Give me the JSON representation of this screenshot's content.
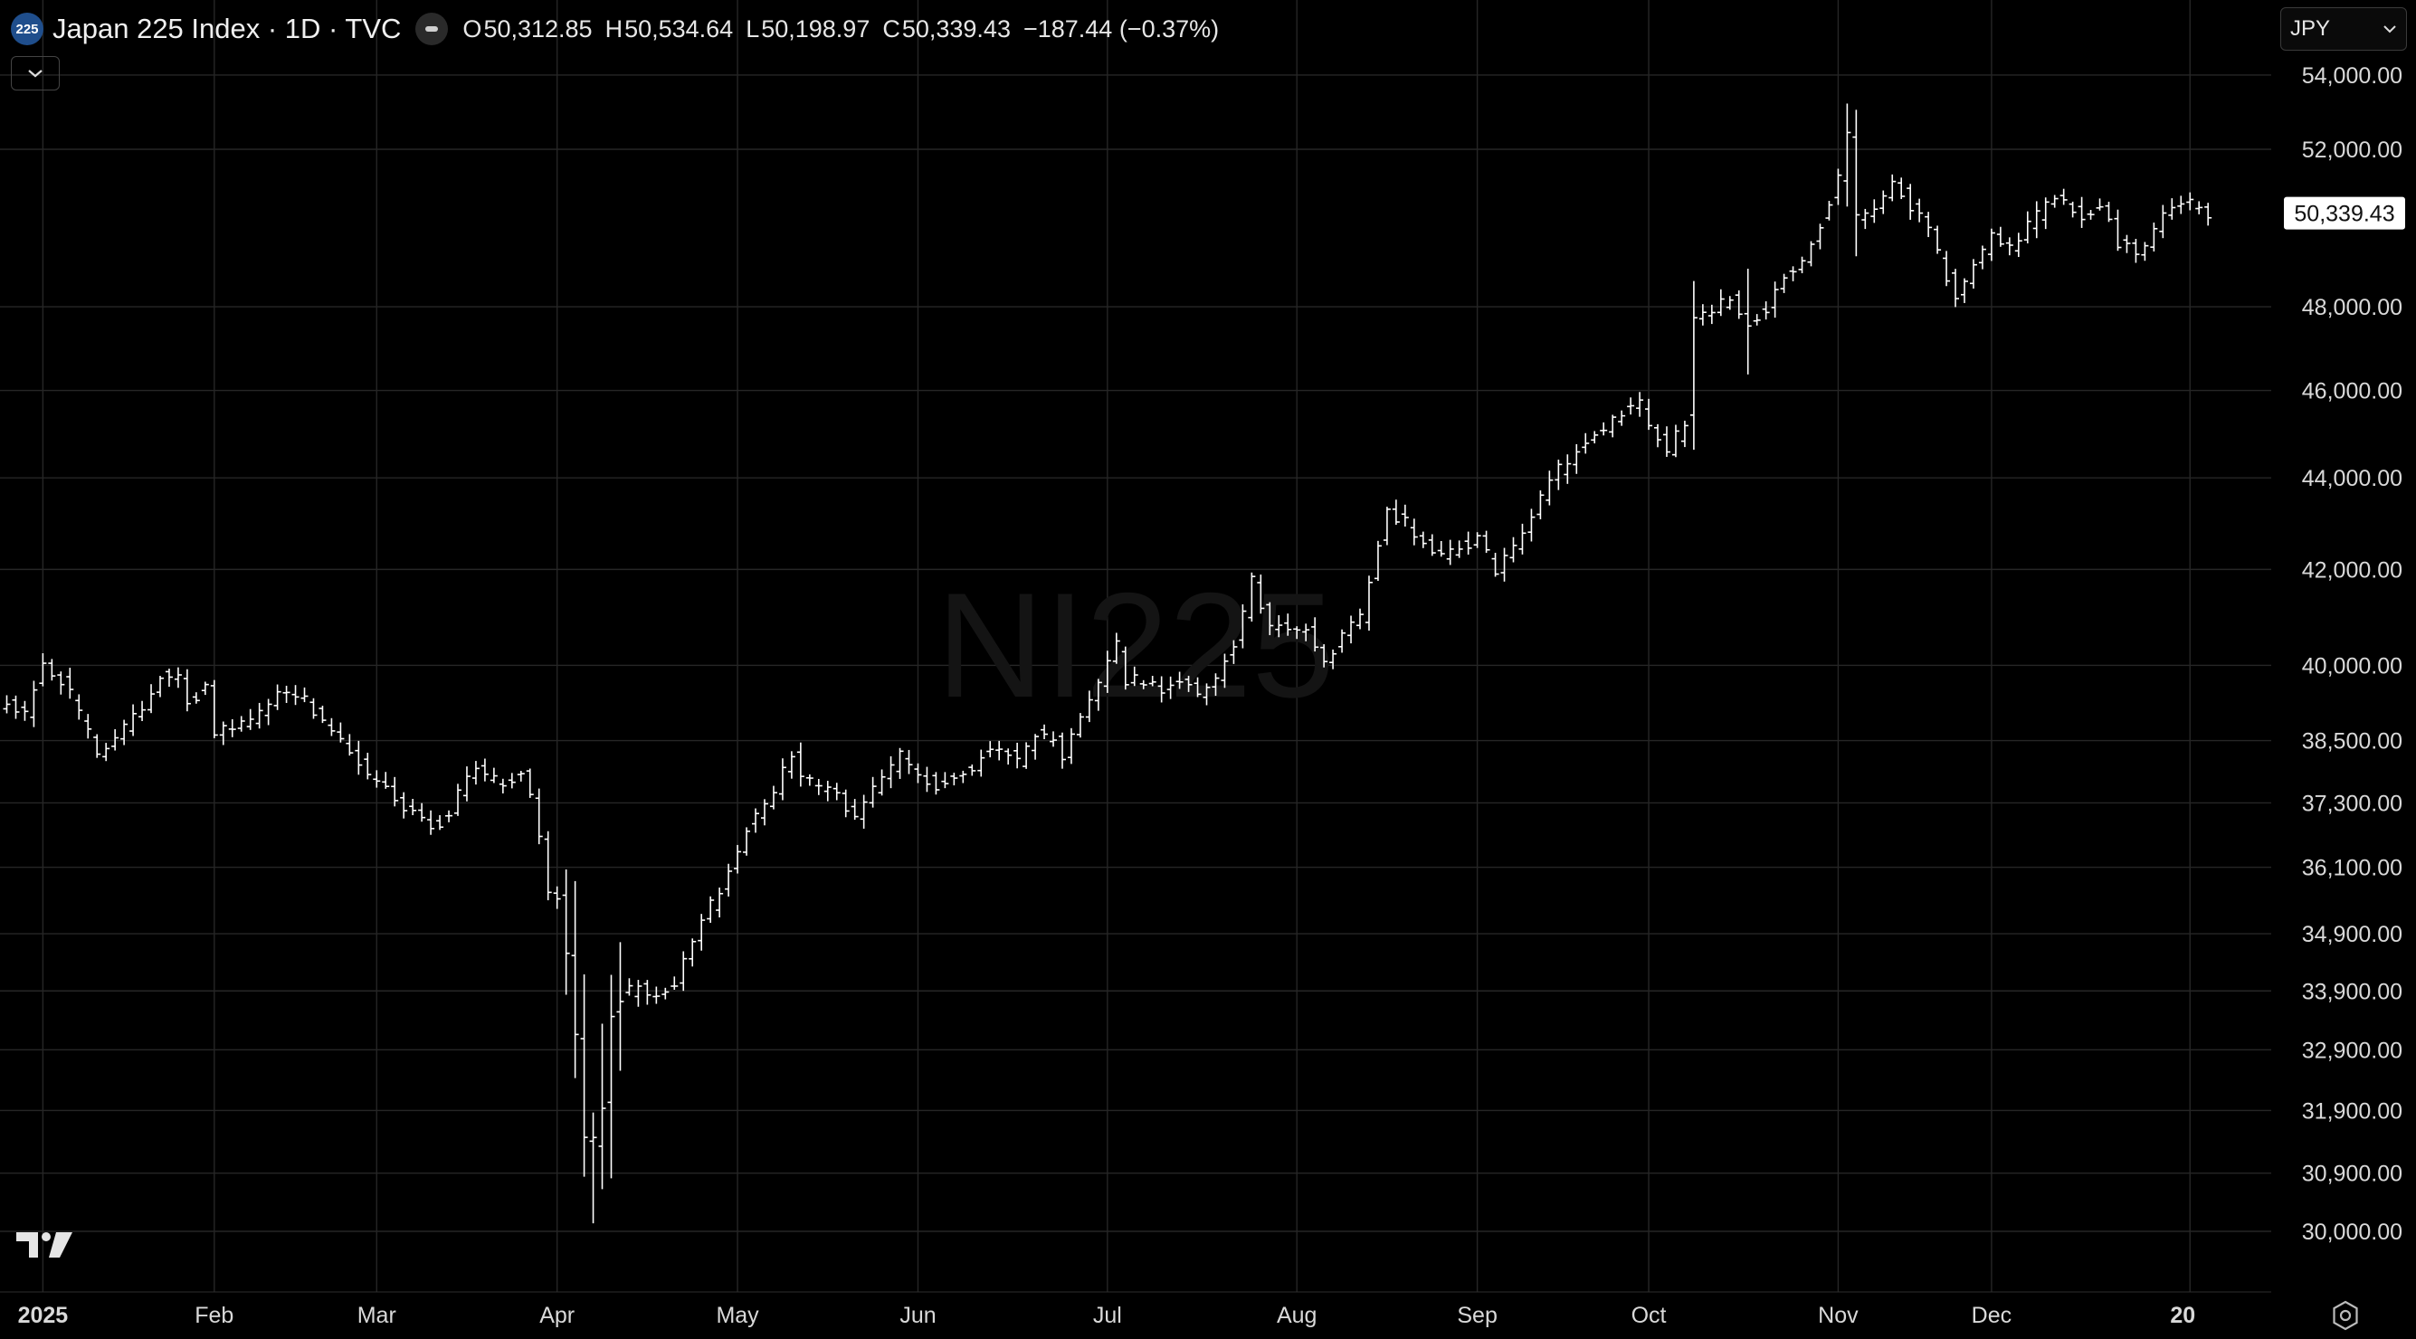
{
  "header": {
    "symbol_badge": "225",
    "title": "Japan 225 Index · 1D · TVC",
    "ohlc": {
      "o_label": "O",
      "o": "50,312.85",
      "h_label": "H",
      "h": "50,534.64",
      "l_label": "L",
      "l": "50,198.97",
      "c_label": "C",
      "c": "50,339.43",
      "change": "−187.44 (−0.37%)"
    }
  },
  "currency_select": {
    "value": "JPY"
  },
  "watermark": "NI225",
  "icons": [
    "chevron-down-icon",
    "tradingview-logo-icon",
    "settings-icon"
  ],
  "colors": {
    "background": "#000000",
    "bars": "#ffffff",
    "grid": "#262626",
    "axis_text": "#d9d9d9",
    "last_price_bg": "#ffffff"
  },
  "chart_data": {
    "type": "ohlc",
    "scale": "log",
    "grid": true,
    "last_price_label": "50,339.43",
    "last_price": 50339.43,
    "y_ticks": [
      "54,000.00",
      "52,000.00",
      "48,000.00",
      "46,000.00",
      "44,000.00",
      "42,000.00",
      "40,000.00",
      "38,500.00",
      "37,300.00",
      "36,100.00",
      "34,900.00",
      "33,900.00",
      "32,900.00",
      "31,900.00",
      "30,900.00",
      "30,000.00"
    ],
    "y_tick_values": [
      54000,
      52000,
      48000,
      46000,
      44000,
      42000,
      40000,
      38500,
      37300,
      36100,
      34900,
      33900,
      32900,
      31900,
      30900,
      30000
    ],
    "x_ticks": [
      "2025",
      "Feb",
      "Mar",
      "Apr",
      "May",
      "Jun",
      "Jul",
      "Aug",
      "Sep",
      "Oct",
      "Nov",
      "Dec",
      "20"
    ],
    "month_anchors": [
      {
        "label": "2025",
        "i": 4
      },
      {
        "label": "Feb",
        "i": 23
      },
      {
        "label": "Mar",
        "i": 41
      },
      {
        "label": "Apr",
        "i": 61
      },
      {
        "label": "May",
        "i": 81
      },
      {
        "label": "Jun",
        "i": 101
      },
      {
        "label": "Jul",
        "i": 122
      },
      {
        "label": "Aug",
        "i": 143
      },
      {
        "label": "Sep",
        "i": 163
      },
      {
        "label": "Oct",
        "i": 182
      },
      {
        "label": "Nov",
        "i": 203
      },
      {
        "label": "Dec",
        "i": 220
      },
      {
        "label": "20",
        "i": 242
      }
    ],
    "close_anchors": [
      [
        0,
        39200
      ],
      [
        2,
        39000
      ],
      [
        3,
        39600
      ],
      [
        4,
        40100
      ],
      [
        5,
        39800
      ],
      [
        6,
        39700
      ],
      [
        7,
        39400
      ],
      [
        8,
        39000
      ],
      [
        10,
        38300
      ],
      [
        12,
        38600
      ],
      [
        14,
        39000
      ],
      [
        16,
        39400
      ],
      [
        17,
        39800
      ],
      [
        19,
        39700
      ],
      [
        20,
        39300
      ],
      [
        22,
        39500
      ],
      [
        23,
        38600
      ],
      [
        24,
        38800
      ],
      [
        27,
        38900
      ],
      [
        30,
        39400
      ],
      [
        33,
        39300
      ],
      [
        36,
        38700
      ],
      [
        38,
        38300
      ],
      [
        40,
        37800
      ],
      [
        43,
        37400
      ],
      [
        45,
        37100
      ],
      [
        47,
        36900
      ],
      [
        49,
        37000
      ],
      [
        50,
        37500
      ],
      [
        52,
        37900
      ],
      [
        55,
        37700
      ],
      [
        57,
        37800
      ],
      [
        58,
        37400
      ],
      [
        59,
        36600
      ],
      [
        60,
        35700
      ],
      [
        61,
        35600
      ],
      [
        62,
        34500
      ],
      [
        63,
        33100
      ],
      [
        64,
        31500
      ],
      [
        65,
        31400
      ],
      [
        66,
        32000
      ],
      [
        67,
        33500
      ],
      [
        68,
        33800
      ],
      [
        70,
        34000
      ],
      [
        72,
        33800
      ],
      [
        74,
        34000
      ],
      [
        76,
        34800
      ],
      [
        78,
        35400
      ],
      [
        80,
        36000
      ],
      [
        82,
        36800
      ],
      [
        85,
        37500
      ],
      [
        87,
        38300
      ],
      [
        88,
        37800
      ],
      [
        90,
        37600
      ],
      [
        92,
        37400
      ],
      [
        94,
        37100
      ],
      [
        96,
        37600
      ],
      [
        98,
        38000
      ],
      [
        99,
        38200
      ],
      [
        101,
        37900
      ],
      [
        103,
        37600
      ],
      [
        105,
        37800
      ],
      [
        107,
        38000
      ],
      [
        108,
        38200
      ],
      [
        110,
        38400
      ],
      [
        112,
        38100
      ],
      [
        114,
        38600
      ],
      [
        116,
        38500
      ],
      [
        117,
        38100
      ],
      [
        118,
        38700
      ],
      [
        120,
        39300
      ],
      [
        122,
        40000
      ],
      [
        123,
        40400
      ],
      [
        124,
        39700
      ],
      [
        126,
        39700
      ],
      [
        128,
        39500
      ],
      [
        130,
        39700
      ],
      [
        132,
        39400
      ],
      [
        134,
        39800
      ],
      [
        136,
        40400
      ],
      [
        138,
        41800
      ],
      [
        139,
        41200
      ],
      [
        140,
        40700
      ],
      [
        142,
        40800
      ],
      [
        144,
        40700
      ],
      [
        146,
        40000
      ],
      [
        148,
        40600
      ],
      [
        150,
        41000
      ],
      [
        152,
        42600
      ],
      [
        153,
        43200
      ],
      [
        155,
        43000
      ],
      [
        157,
        42600
      ],
      [
        159,
        42300
      ],
      [
        161,
        42500
      ],
      [
        163,
        42600
      ],
      [
        165,
        42000
      ],
      [
        167,
        42400
      ],
      [
        169,
        43200
      ],
      [
        171,
        44000
      ],
      [
        173,
        44400
      ],
      [
        175,
        44800
      ],
      [
        177,
        45100
      ],
      [
        179,
        45500
      ],
      [
        181,
        45700
      ],
      [
        182,
        45200
      ],
      [
        184,
        44600
      ],
      [
        186,
        45300
      ],
      [
        187,
        47800
      ],
      [
        189,
        48000
      ],
      [
        191,
        48200
      ],
      [
        193,
        47600
      ],
      [
        195,
        48000
      ],
      [
        197,
        48800
      ],
      [
        199,
        49200
      ],
      [
        201,
        50100
      ],
      [
        203,
        51300
      ],
      [
        204,
        52300
      ],
      [
        205,
        50200
      ],
      [
        207,
        50500
      ],
      [
        209,
        51200
      ],
      [
        211,
        50500
      ],
      [
        213,
        49900
      ],
      [
        215,
        48700
      ],
      [
        216,
        48300
      ],
      [
        218,
        49000
      ],
      [
        220,
        49800
      ],
      [
        222,
        49500
      ],
      [
        224,
        50000
      ],
      [
        226,
        50600
      ],
      [
        228,
        50700
      ],
      [
        230,
        50300
      ],
      [
        232,
        50500
      ],
      [
        234,
        49600
      ],
      [
        236,
        49300
      ],
      [
        237,
        49400
      ],
      [
        239,
        50400
      ],
      [
        241,
        50700
      ],
      [
        243,
        50500
      ],
      [
        244,
        50339
      ]
    ]
  }
}
